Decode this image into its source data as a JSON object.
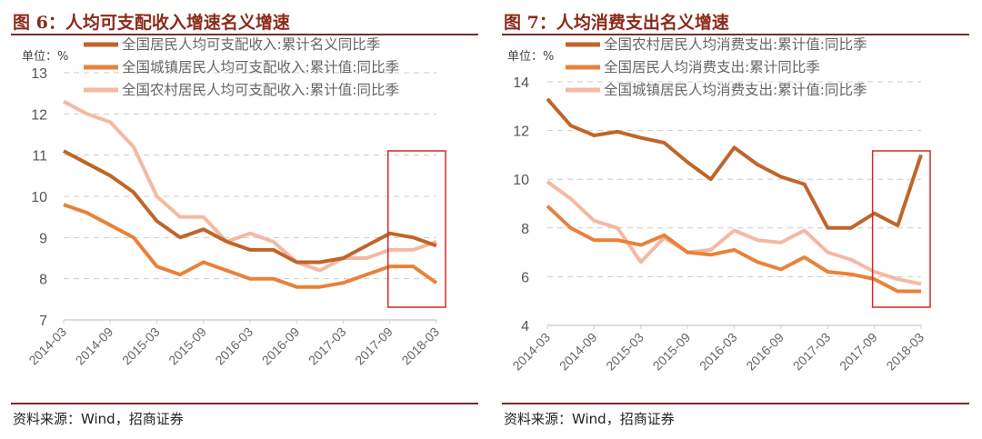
{
  "source": "资料来源：Wind，招商证券",
  "colors": {
    "dark": "#C0652A",
    "mid": "#E8823A",
    "light": "#F3B9A2",
    "highlight_box": "#D62828",
    "title": "#8B2A1A"
  },
  "chart_data": [
    {
      "type": "line",
      "title": "图 6：人均可支配收入增速名义增速",
      "unit_label": "单位：%",
      "ylim": [
        7,
        13
      ],
      "yticks": [
        7,
        8,
        9,
        10,
        11,
        12,
        13
      ],
      "grid": true,
      "legend": "top",
      "x": [
        "2014-03",
        "2014-06",
        "2014-09",
        "2014-12",
        "2015-03",
        "2015-06",
        "2015-09",
        "2015-12",
        "2016-03",
        "2016-06",
        "2016-09",
        "2016-12",
        "2017-03",
        "2017-06",
        "2017-09",
        "2017-12",
        "2018-03"
      ],
      "xtick_labels": [
        "2014-03",
        "2014-09",
        "2015-03",
        "2015-09",
        "2016-03",
        "2016-09",
        "2017-03",
        "2017-09",
        "2018-03"
      ],
      "highlight_range": [
        "2017-09",
        "2018-03"
      ],
      "series": [
        {
          "name": "全国居民人均可支配收入:累计名义同比季",
          "color": "dark",
          "values": [
            11.1,
            10.8,
            10.5,
            10.1,
            9.4,
            9.0,
            9.2,
            8.9,
            8.7,
            8.7,
            8.4,
            8.4,
            8.5,
            8.8,
            9.1,
            9.0,
            8.8
          ]
        },
        {
          "name": "全国城镇居民人均可支配收入:累计值:同比季",
          "color": "mid",
          "values": [
            9.8,
            9.6,
            9.3,
            9.0,
            8.3,
            8.1,
            8.4,
            8.2,
            8.0,
            8.0,
            7.8,
            7.8,
            7.9,
            8.1,
            8.3,
            8.3,
            7.9
          ]
        },
        {
          "name": "全国农村居民人均可支配收入:累计值:同比季",
          "color": "light",
          "values": [
            12.3,
            12.0,
            11.8,
            11.2,
            10.0,
            9.5,
            9.5,
            8.9,
            9.1,
            8.9,
            8.4,
            8.2,
            8.5,
            8.5,
            8.7,
            8.7,
            8.9
          ]
        }
      ]
    },
    {
      "type": "line",
      "title": "图 7：人均消费支出名义增速",
      "unit_label": "单位：%",
      "ylim": [
        4,
        14
      ],
      "yticks": [
        4,
        6,
        8,
        10,
        12,
        14
      ],
      "grid": true,
      "legend": "top",
      "x": [
        "2014-03",
        "2014-06",
        "2014-09",
        "2014-12",
        "2015-03",
        "2015-06",
        "2015-09",
        "2015-12",
        "2016-03",
        "2016-06",
        "2016-09",
        "2016-12",
        "2017-03",
        "2017-06",
        "2017-09",
        "2017-12",
        "2018-03"
      ],
      "xtick_labels": [
        "2014-03",
        "2014-09",
        "2015-03",
        "2015-09",
        "2016-03",
        "2016-09",
        "2017-03",
        "2017-09",
        "2018-03"
      ],
      "highlight_range": [
        "2017-09",
        "2018-03"
      ],
      "series": [
        {
          "name": "全国农村居民人均消费支出:累计值:同比季",
          "color": "dark",
          "values": [
            13.3,
            12.2,
            11.8,
            11.95,
            11.7,
            11.5,
            10.7,
            10.0,
            11.3,
            10.6,
            10.1,
            9.8,
            8.0,
            8.0,
            8.6,
            8.1,
            11.0
          ]
        },
        {
          "name": "全国居民人均消费支出:累计同比季",
          "color": "mid",
          "values": [
            8.9,
            8.0,
            7.5,
            7.5,
            7.3,
            7.7,
            7.0,
            6.9,
            7.1,
            6.6,
            6.3,
            6.8,
            6.2,
            6.1,
            5.9,
            5.4,
            5.4
          ]
        },
        {
          "name": "全国城镇居民人均消费支出:累计值:同比季",
          "color": "light",
          "values": [
            9.9,
            9.2,
            8.3,
            8.0,
            6.6,
            7.6,
            7.0,
            7.1,
            7.9,
            7.5,
            7.4,
            7.9,
            7.0,
            6.7,
            6.2,
            5.9,
            5.7
          ]
        }
      ]
    }
  ]
}
